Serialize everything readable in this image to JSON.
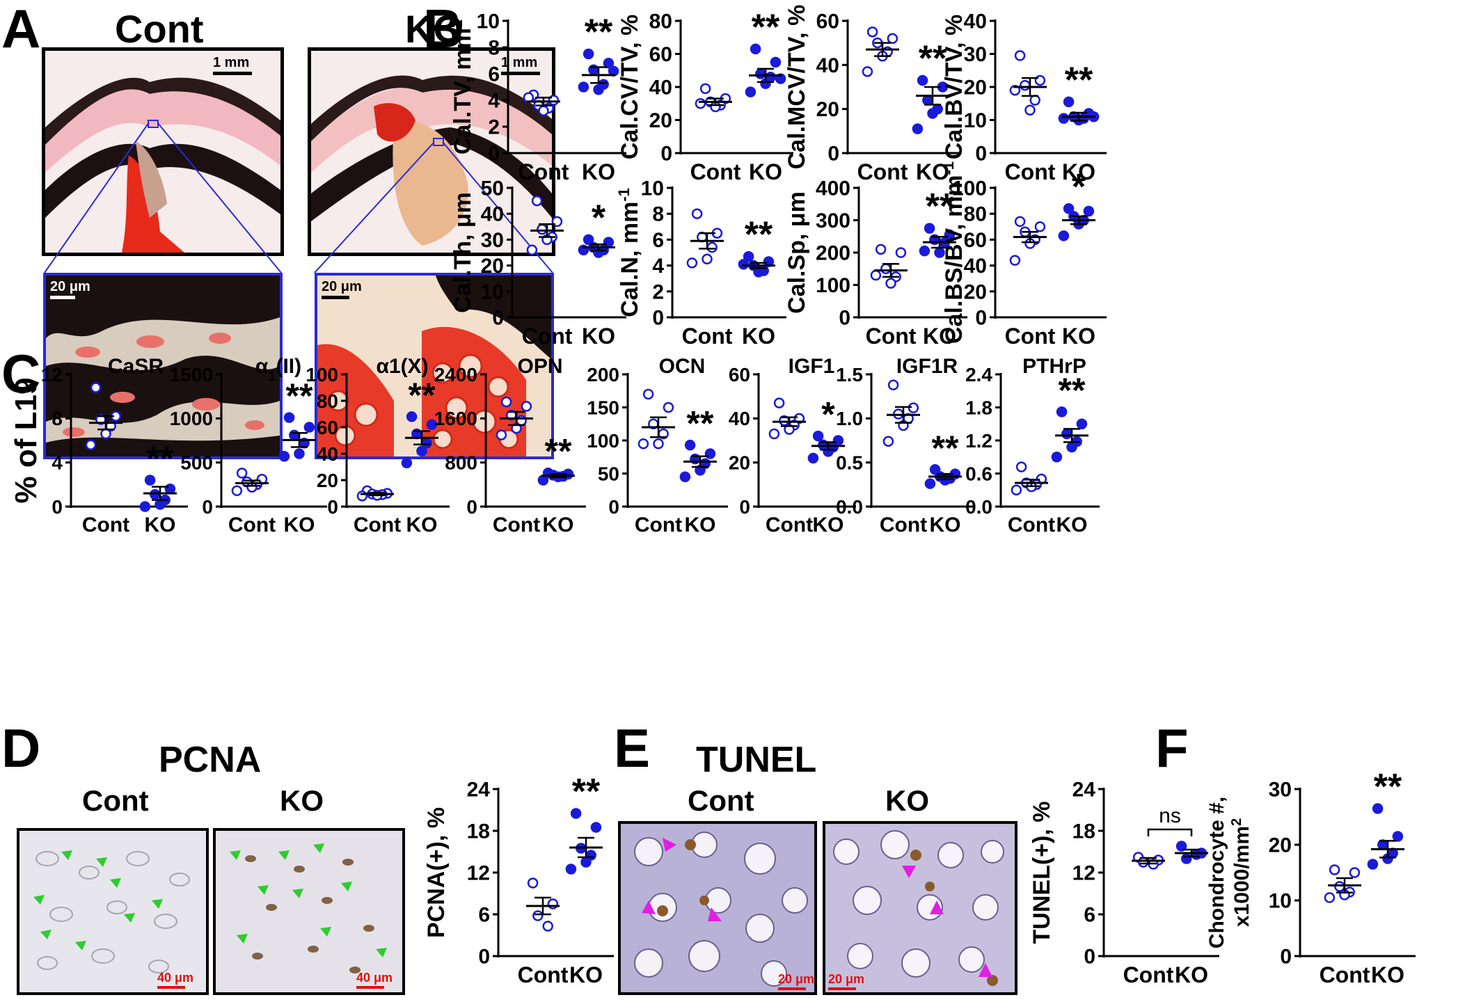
{
  "panel_letters": [
    "A",
    "B",
    "C",
    "D",
    "E",
    "F"
  ],
  "colors": {
    "dot": "#1a1adb",
    "sig": "#000000",
    "scalebar_red": "#e01010",
    "arrow_green": "#2ecc2e",
    "arrow_magenta": "#e020e0",
    "frame_blue": "#2a2ad8"
  },
  "panelA": {
    "cont_title": "Cont",
    "ko_title": "KO",
    "scale_top": "1 mm",
    "scale_bottom": "20 μm"
  },
  "panelD": {
    "title": "PCNA",
    "cont": "Cont",
    "ko": "KO",
    "scale": "40 μm",
    "arrow_color_name": "green-arrow-icon"
  },
  "panelE": {
    "title": "TUNEL",
    "cont": "Cont",
    "ko": "KO",
    "scale": "20 μm",
    "arrow_color_name": "magenta-arrow-icon"
  },
  "chart_data": [
    {
      "type": "scatter",
      "panel": "B",
      "ylabel": "Cal.TV, mm2",
      "ylabel_base": "Cal.TV, mm",
      "ylabel_sup": "2",
      "categories": [
        "Cont",
        "KO"
      ],
      "ylim": [
        0,
        10
      ],
      "yticks": [
        "0",
        "2",
        "4",
        "6",
        "8",
        "10"
      ],
      "means": [
        3.9,
        5.9
      ],
      "sems": [
        0.3,
        0.6
      ],
      "sig": "**",
      "series": [
        {
          "values": [
            4.4,
            4.0,
            3.6,
            3.4,
            3.2,
            4.2
          ]
        },
        {
          "values": [
            7.5,
            6.8,
            6.3,
            5.2,
            4.8,
            5.0,
            6.2
          ]
        }
      ]
    },
    {
      "type": "scatter",
      "panel": "B",
      "ylabel": "Cal.CV/TV, %",
      "categories": [
        "Cont",
        "KO"
      ],
      "ylim": [
        0,
        80
      ],
      "yticks": [
        "0",
        "20",
        "40",
        "60",
        "80"
      ],
      "means": [
        31,
        47
      ],
      "sems": [
        2,
        4
      ],
      "sig": "**",
      "series": [
        {
          "values": [
            39,
            33,
            31,
            29,
            28,
            30
          ]
        },
        {
          "values": [
            63,
            55,
            48,
            46,
            42,
            37,
            45
          ]
        }
      ]
    },
    {
      "type": "scatter",
      "panel": "B",
      "ylabel": "Cal.MCV/TV, %",
      "categories": [
        "Cont",
        "KO"
      ],
      "ylim": [
        0,
        60
      ],
      "yticks": [
        "0",
        "20",
        "40",
        "60"
      ],
      "means": [
        47,
        26
      ],
      "sems": [
        3,
        4
      ],
      "sig": "**",
      "series": [
        {
          "values": [
            55,
            52,
            50,
            46,
            44,
            37
          ]
        },
        {
          "values": [
            33,
            30,
            24,
            20,
            18,
            11
          ]
        }
      ]
    },
    {
      "type": "scatter",
      "panel": "B",
      "ylabel": "Cal.BV/TV, %",
      "categories": [
        "Cont",
        "KO"
      ],
      "ylim": [
        0,
        40
      ],
      "yticks": [
        "0",
        "10",
        "20",
        "30",
        "40"
      ],
      "means": [
        20,
        11
      ],
      "sems": [
        2.7,
        1.2
      ],
      "sig": "**",
      "series": [
        {
          "values": [
            29.5,
            22,
            20.5,
            16,
            13,
            19
          ]
        },
        {
          "values": [
            15.5,
            12,
            11,
            10.5,
            10,
            10.5,
            11
          ]
        }
      ]
    },
    {
      "type": "scatter",
      "panel": "B",
      "ylabel": "Cal.Th, μm",
      "categories": [
        "Cont",
        "KO"
      ],
      "ylim": [
        0,
        50
      ],
      "yticks": [
        "0",
        "10",
        "20",
        "30",
        "40",
        "50"
      ],
      "means": [
        33.5,
        27
      ],
      "sems": [
        2.5,
        1.2
      ],
      "sig": "*",
      "series": [
        {
          "values": [
            45,
            37,
            34,
            31,
            30,
            26
          ]
        },
        {
          "values": [
            30,
            29,
            27,
            26,
            25,
            26
          ]
        }
      ]
    },
    {
      "type": "scatter",
      "panel": "B",
      "ylabel": "Cal.N, mm-1",
      "ylabel_base": "Cal.N, mm",
      "ylabel_sup": "-1",
      "categories": [
        "Cont",
        "KO"
      ],
      "ylim": [
        0,
        10
      ],
      "yticks": [
        "0",
        "2",
        "4",
        "6",
        "8",
        "10"
      ],
      "means": [
        5.9,
        4.0
      ],
      "sems": [
        0.6,
        0.2
      ],
      "sig": "**",
      "series": [
        {
          "values": [
            8.0,
            6.5,
            6.2,
            5.4,
            4.5,
            4.2
          ]
        },
        {
          "values": [
            4.7,
            4.3,
            4.0,
            3.6,
            3.5,
            4.1
          ]
        }
      ]
    },
    {
      "type": "scatter",
      "panel": "B",
      "ylabel": "Cal.Sp, μm",
      "categories": [
        "Cont",
        "KO"
      ],
      "ylim": [
        0,
        400
      ],
      "yticks": [
        "0",
        "100",
        "200",
        "300",
        "400"
      ],
      "means": [
        145,
        232
      ],
      "sems": [
        20,
        17
      ],
      "sig": "**",
      "series": [
        {
          "values": [
            210,
            200,
            150,
            125,
            105,
            130
          ]
        },
        {
          "values": [
            275,
            255,
            240,
            230,
            200,
            205
          ]
        }
      ]
    },
    {
      "type": "scatter",
      "panel": "B",
      "ylabel": "Cal.BS/BV, mm-1",
      "ylabel_base": "Cal.BS/BV, mm",
      "ylabel_sup": "-1",
      "categories": [
        "Cont",
        "KO"
      ],
      "ylim": [
        0,
        100
      ],
      "yticks": [
        "0",
        "20",
        "40",
        "60",
        "80",
        "100"
      ],
      "means": [
        62,
        75
      ],
      "sems": [
        4,
        3
      ],
      "sig": "*",
      "series": [
        {
          "values": [
            74,
            70,
            66,
            60,
            57,
            44
          ]
        },
        {
          "values": [
            84,
            82,
            78,
            75,
            72,
            63
          ]
        }
      ]
    },
    {
      "type": "scatter",
      "panel": "C",
      "title": "CaSR",
      "ylabel": "% of L19",
      "categories": [
        "Cont",
        "KO"
      ],
      "ylim": [
        0,
        12
      ],
      "yticks": [
        "0",
        "4",
        "8",
        "12"
      ],
      "means": [
        7.6,
        1.2
      ],
      "sems": [
        0.6,
        0.6
      ],
      "sig": "**",
      "series": [
        {
          "values": [
            10.8,
            8.2,
            7.9,
            7.3,
            6.6,
            5.6
          ]
        },
        {
          "values": [
            2.4,
            1.6,
            1.1,
            0.6,
            0.2,
            0.0
          ]
        }
      ]
    },
    {
      "type": "scatter",
      "panel": "C",
      "title": "α1(II)",
      "title_base": "α",
      "title_sub": "1",
      "title_rest": "(II)",
      "categories": [
        "Cont",
        "KO"
      ],
      "ylim": [
        0,
        1500
      ],
      "yticks": [
        "0",
        "500",
        "1000",
        "1500"
      ],
      "means": [
        265,
        755
      ],
      "sems": [
        30,
        80
      ],
      "sig": "**",
      "series": [
        {
          "values": [
            380,
            310,
            280,
            250,
            220,
            180
          ]
        },
        {
          "values": [
            1010,
            900,
            810,
            720,
            600,
            570
          ]
        }
      ]
    },
    {
      "type": "scatter",
      "panel": "C",
      "title": "α1(X)",
      "categories": [
        "Cont",
        "KO"
      ],
      "ylim": [
        0,
        100
      ],
      "yticks": [
        "0",
        "20",
        "40",
        "60",
        "80",
        "100"
      ],
      "means": [
        9.5,
        52
      ],
      "sems": [
        1,
        5
      ],
      "sig": "**",
      "series": [
        {
          "values": [
            12,
            10,
            9.5,
            9,
            8.5,
            8
          ]
        },
        {
          "values": [
            68,
            62,
            55,
            48,
            42,
            33
          ]
        }
      ]
    },
    {
      "type": "scatter",
      "panel": "C",
      "title": "OPN",
      "categories": [
        "Cont",
        "KO"
      ],
      "ylim": [
        0,
        2400
      ],
      "yticks": [
        "0",
        "800",
        "1600",
        "2400"
      ],
      "means": [
        1600,
        560
      ],
      "sems": [
        120,
        30
      ],
      "sig": "**",
      "series": [
        {
          "values": [
            1900,
            1820,
            1660,
            1560,
            1420,
            1300
          ]
        },
        {
          "values": [
            610,
            590,
            570,
            550,
            540,
            480
          ]
        }
      ]
    },
    {
      "type": "scatter",
      "panel": "C",
      "title": "OCN",
      "categories": [
        "Cont",
        "KO"
      ],
      "ylim": [
        0,
        200
      ],
      "yticks": [
        "0",
        "50",
        "100",
        "150",
        "200"
      ],
      "means": [
        120,
        68
      ],
      "sems": [
        15,
        8
      ],
      "sig": "**",
      "series": [
        {
          "values": [
            170,
            150,
            125,
            110,
            95,
            95
          ]
        },
        {
          "values": [
            93,
            80,
            72,
            65,
            55,
            45
          ]
        }
      ]
    },
    {
      "type": "scatter",
      "panel": "C",
      "title": "IGF1",
      "categories": [
        "Cont",
        "KO"
      ],
      "ylim": [
        0,
        60
      ],
      "yticks": [
        "0",
        "20",
        "40",
        "60"
      ],
      "means": [
        38.5,
        27.5
      ],
      "sems": [
        2,
        1.7
      ],
      "sig": "*",
      "series": [
        {
          "values": [
            47,
            40,
            39,
            37,
            35,
            33
          ]
        },
        {
          "values": [
            32,
            30,
            28,
            27,
            25,
            22
          ]
        }
      ]
    },
    {
      "type": "scatter",
      "panel": "C",
      "title": "IGF1R",
      "categories": [
        "Cont",
        "KO"
      ],
      "ylim": [
        0,
        1.5
      ],
      "yticks": [
        "0.0",
        "0.5",
        "1.0",
        "1.5"
      ],
      "means": [
        1.04,
        0.34
      ],
      "sems": [
        0.09,
        0.03
      ],
      "sig": "**",
      "series": [
        {
          "values": [
            1.38,
            1.12,
            1.05,
            1.0,
            0.92,
            0.74
          ]
        },
        {
          "values": [
            0.42,
            0.37,
            0.34,
            0.32,
            0.3,
            0.26
          ]
        }
      ]
    },
    {
      "type": "scatter",
      "panel": "C",
      "title": "PTHrP",
      "categories": [
        "Cont",
        "KO"
      ],
      "ylim": [
        0,
        2.4
      ],
      "yticks": [
        "0.0",
        "0.6",
        "1.2",
        "1.8",
        "2.4"
      ],
      "means": [
        0.43,
        1.29
      ],
      "sems": [
        0.06,
        0.12
      ],
      "sig": "**",
      "series": [
        {
          "values": [
            0.72,
            0.5,
            0.43,
            0.4,
            0.36,
            0.3
          ]
        },
        {
          "values": [
            1.72,
            1.5,
            1.32,
            1.18,
            1.08,
            0.9
          ]
        }
      ]
    },
    {
      "type": "scatter",
      "panel": "D",
      "ylabel": "PCNA(+), %",
      "categories": [
        "Cont",
        "KO"
      ],
      "ylim": [
        0,
        24
      ],
      "yticks": [
        "0",
        "6",
        "12",
        "18",
        "24"
      ],
      "means": [
        7.2,
        15.6
      ],
      "sems": [
        1.2,
        1.4
      ],
      "sig": "**",
      "series": [
        {
          "values": [
            10.5,
            7.5,
            5.8,
            4.3
          ]
        },
        {
          "values": [
            20.5,
            18.5,
            15.5,
            14.5,
            13.5,
            12.5
          ]
        }
      ]
    },
    {
      "type": "scatter",
      "panel": "E",
      "ylabel": "TUNEL(+), %",
      "categories": [
        "Cont",
        "KO"
      ],
      "ylim": [
        0,
        24
      ],
      "yticks": [
        "0",
        "6",
        "12",
        "18",
        "24"
      ],
      "means": [
        13.7,
        14.8
      ],
      "sems": [
        0.4,
        0.5
      ],
      "sig": "ns",
      "bracket": true,
      "series": [
        {
          "values": [
            14.2,
            13.8,
            13.5,
            13.2
          ]
        },
        {
          "values": [
            15.8,
            14.8,
            14.0,
            14.6
          ]
        }
      ]
    },
    {
      "type": "scatter",
      "panel": "F",
      "ylabel": "Chondrocyte #, x1000/mm2",
      "ylabel_line1": "Chondrocyte #,",
      "ylabel_line2_base": "x1000/mm",
      "ylabel_sup": "2",
      "categories": [
        "Cont",
        "KO"
      ],
      "ylim": [
        0,
        30
      ],
      "yticks": [
        "0",
        "10",
        "20",
        "30"
      ],
      "means": [
        12.7,
        19.2
      ],
      "sems": [
        1.3,
        1.5
      ],
      "sig": "**",
      "series": [
        {
          "values": [
            15.5,
            15.0,
            12.5,
            11.5,
            11.0,
            10.5
          ]
        },
        {
          "values": [
            26.5,
            21.5,
            20.0,
            18.5,
            17.5,
            16.5
          ]
        }
      ]
    }
  ]
}
